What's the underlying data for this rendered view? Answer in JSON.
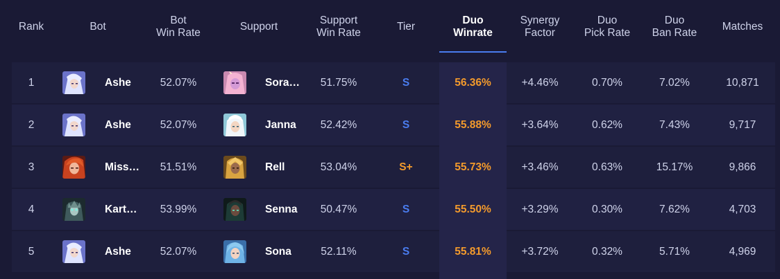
{
  "headers": {
    "rank": "Rank",
    "bot": "Bot",
    "bot_win_rate": "Bot\nWin Rate",
    "support": "Support",
    "support_win_rate": "Support\nWin Rate",
    "tier": "Tier",
    "duo_winrate": "Duo\nWinrate",
    "synergy_factor": "Synergy\nFactor",
    "duo_pick_rate": "Duo\nPick Rate",
    "duo_ban_rate": "Duo\nBan Rate",
    "matches": "Matches"
  },
  "rows": [
    {
      "rank": "1",
      "bot": "Ashe",
      "bot_icon": "ashe-portrait-icon",
      "bot_win_rate": "52.07%",
      "support": "Sora…",
      "support_icon": "soraka-portrait-icon",
      "support_win_rate": "51.75%",
      "tier": "S",
      "duo_winrate": "56.36%",
      "synergy": "+4.46%",
      "pick_rate": "0.70%",
      "ban_rate": "7.02%",
      "matches": "10,871"
    },
    {
      "rank": "2",
      "bot": "Ashe",
      "bot_icon": "ashe-portrait-icon",
      "bot_win_rate": "52.07%",
      "support": "Janna",
      "support_icon": "janna-portrait-icon",
      "support_win_rate": "52.42%",
      "tier": "S",
      "duo_winrate": "55.88%",
      "synergy": "+3.64%",
      "pick_rate": "0.62%",
      "ban_rate": "7.43%",
      "matches": "9,717"
    },
    {
      "rank": "3",
      "bot": "Miss…",
      "bot_icon": "miss-fortune-portrait-icon",
      "bot_win_rate": "51.51%",
      "support": "Rell",
      "support_icon": "rell-portrait-icon",
      "support_win_rate": "53.04%",
      "tier": "S+",
      "duo_winrate": "55.73%",
      "synergy": "+3.46%",
      "pick_rate": "0.63%",
      "ban_rate": "15.17%",
      "matches": "9,866"
    },
    {
      "rank": "4",
      "bot": "Kart…",
      "bot_icon": "karthus-portrait-icon",
      "bot_win_rate": "53.99%",
      "support": "Senna",
      "support_icon": "senna-portrait-icon",
      "support_win_rate": "50.47%",
      "tier": "S",
      "duo_winrate": "55.50%",
      "synergy": "+3.29%",
      "pick_rate": "0.30%",
      "ban_rate": "7.62%",
      "matches": "4,703"
    },
    {
      "rank": "5",
      "bot": "Ashe",
      "bot_icon": "ashe-portrait-icon",
      "bot_win_rate": "52.07%",
      "support": "Sona",
      "support_icon": "sona-portrait-icon",
      "support_win_rate": "52.11%",
      "tier": "S",
      "duo_winrate": "55.81%",
      "synergy": "+3.72%",
      "pick_rate": "0.32%",
      "ban_rate": "5.71%",
      "matches": "4,969"
    }
  ],
  "colors": {
    "background": "#1a1a35",
    "row": "#1e1f3d",
    "highlight_column": "#242449",
    "accent_blue": "#4a7df0",
    "accent_orange": "#f39a2c"
  }
}
